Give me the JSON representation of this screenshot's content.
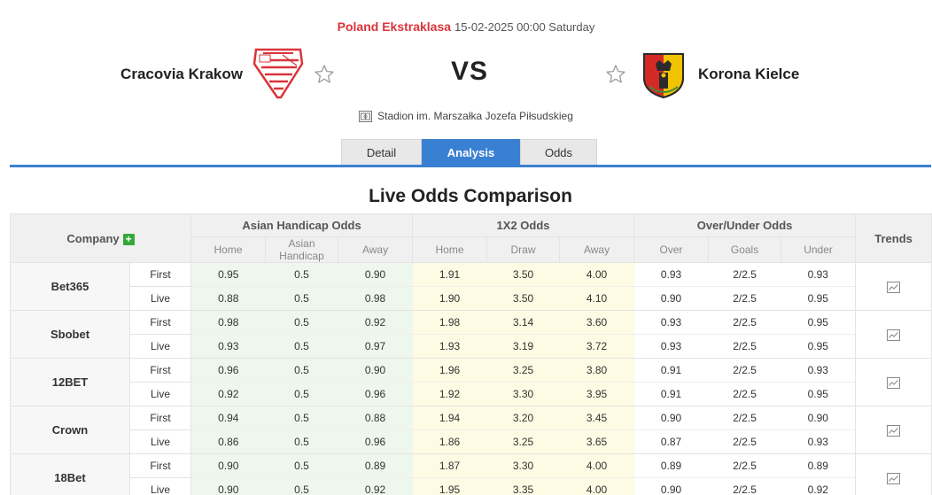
{
  "header": {
    "league": "Poland Ekstraklasa",
    "datetime": "15-02-2025 00:00 Saturday",
    "home_team": "Cracovia Krakow",
    "away_team": "Korona Kielce",
    "vs": "VS",
    "venue": "Stadion im. Marszałka Jozefa Piłsudskieg"
  },
  "tabs": [
    {
      "label": "Detail",
      "active": false
    },
    {
      "label": "Analysis",
      "active": true
    },
    {
      "label": "Odds",
      "active": false
    }
  ],
  "section_title": "Live Odds Comparison",
  "table": {
    "company_header": "Company",
    "groups": {
      "ah": "Asian Handicap Odds",
      "x12": "1X2 Odds",
      "ou": "Over/Under Odds",
      "trends": "Trends"
    },
    "sub": {
      "ah": [
        "Home",
        "Asian Handicap",
        "Away"
      ],
      "x12": [
        "Home",
        "Draw",
        "Away"
      ],
      "ou": [
        "Over",
        "Goals",
        "Under"
      ]
    },
    "rows": [
      {
        "company": "Bet365",
        "first": {
          "type": "First",
          "ah": [
            "0.95",
            "0.5",
            "0.90"
          ],
          "x12": [
            "1.91",
            "3.50",
            "4.00"
          ],
          "ou": [
            "0.93",
            "2/2.5",
            "0.93"
          ]
        },
        "live": {
          "type": "Live",
          "ah": [
            "0.88",
            "0.5",
            "0.98"
          ],
          "x12": [
            "1.90",
            "3.50",
            "4.10"
          ],
          "ou": [
            "0.90",
            "2/2.5",
            "0.95"
          ]
        }
      },
      {
        "company": "Sbobet",
        "first": {
          "type": "First",
          "ah": [
            "0.98",
            "0.5",
            "0.92"
          ],
          "x12": [
            "1.98",
            "3.14",
            "3.60"
          ],
          "ou": [
            "0.93",
            "2/2.5",
            "0.95"
          ]
        },
        "live": {
          "type": "Live",
          "ah": [
            "0.93",
            "0.5",
            "0.97"
          ],
          "x12": [
            "1.93",
            "3.19",
            "3.72"
          ],
          "ou": [
            "0.93",
            "2/2.5",
            "0.95"
          ]
        }
      },
      {
        "company": "12BET",
        "first": {
          "type": "First",
          "ah": [
            "0.96",
            "0.5",
            "0.90"
          ],
          "x12": [
            "1.96",
            "3.25",
            "3.80"
          ],
          "ou": [
            "0.91",
            "2/2.5",
            "0.93"
          ]
        },
        "live": {
          "type": "Live",
          "ah": [
            "0.92",
            "0.5",
            "0.96"
          ],
          "x12": [
            "1.92",
            "3.30",
            "3.95"
          ],
          "ou": [
            "0.91",
            "2/2.5",
            "0.95"
          ]
        }
      },
      {
        "company": "Crown",
        "first": {
          "type": "First",
          "ah": [
            "0.94",
            "0.5",
            "0.88"
          ],
          "x12": [
            "1.94",
            "3.20",
            "3.45"
          ],
          "ou": [
            "0.90",
            "2/2.5",
            "0.90"
          ]
        },
        "live": {
          "type": "Live",
          "ah": [
            "0.86",
            "0.5",
            "0.96"
          ],
          "x12": [
            "1.86",
            "3.25",
            "3.65"
          ],
          "ou": [
            "0.87",
            "2/2.5",
            "0.93"
          ]
        }
      },
      {
        "company": "18Bet",
        "first": {
          "type": "First",
          "ah": [
            "0.90",
            "0.5",
            "0.89"
          ],
          "x12": [
            "1.87",
            "3.30",
            "4.00"
          ],
          "ou": [
            "0.89",
            "2/2.5",
            "0.89"
          ]
        },
        "live": {
          "type": "Live",
          "ah": [
            "0.90",
            "0.5",
            "0.92"
          ],
          "x12": [
            "1.95",
            "3.35",
            "4.00"
          ],
          "ou": [
            "0.90",
            "2/2.5",
            "0.92"
          ]
        }
      }
    ]
  },
  "colors": {
    "accent_blue": "#3a80d2",
    "league_red": "#d9343a",
    "ah_bg": "#eef7ec",
    "x12_bg": "#fdfbe3",
    "plus_green": "#35a83a"
  },
  "icons": {
    "star": "star-outline-icon",
    "venue": "stadium-icon",
    "trend": "line-chart-icon",
    "add": "plus-icon"
  }
}
